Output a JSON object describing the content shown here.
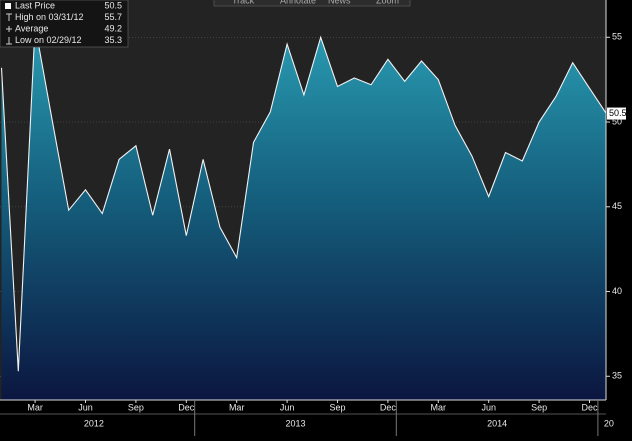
{
  "chart_data": {
    "type": "area",
    "categories": [
      null,
      null,
      "Mar",
      null,
      null,
      "Jun",
      null,
      null,
      "Sep",
      null,
      null,
      "Dec",
      null,
      null,
      "Mar",
      null,
      null,
      "Jun",
      null,
      null,
      "Sep",
      null,
      null,
      "Dec",
      null,
      null,
      "Mar",
      null,
      null,
      "Jun",
      null,
      null,
      "Sep",
      null,
      null,
      "Dec",
      null
    ],
    "year_labels": [
      "2012",
      "2013",
      "2014",
      "20"
    ],
    "values": [
      53.2,
      35.3,
      55.7,
      50.2,
      44.8,
      46.0,
      44.6,
      47.8,
      48.6,
      44.5,
      48.4,
      43.3,
      47.8,
      43.8,
      42.0,
      48.8,
      50.6,
      54.6,
      51.6,
      55.0,
      52.1,
      52.6,
      52.2,
      53.7,
      52.4,
      53.6,
      52.5,
      49.8,
      48.0,
      45.6,
      48.2,
      47.7,
      50.0,
      51.5,
      53.5,
      52.0,
      50.5
    ],
    "ylim": [
      33.6,
      57.2
    ],
    "yticks": [
      35,
      40,
      45,
      50,
      55
    ],
    "grid": true,
    "last_value_label": "50.5",
    "legend": [
      {
        "label": "Last Price",
        "value": 50.5
      },
      {
        "label": "High on 03/31/12",
        "value": 55.7
      },
      {
        "label": "Average",
        "value": 49.2
      },
      {
        "label": "Low on 02/29/12",
        "value": 35.3
      }
    ],
    "toolbar": [
      "Track",
      "Annotate",
      "News",
      "Zoom"
    ]
  }
}
